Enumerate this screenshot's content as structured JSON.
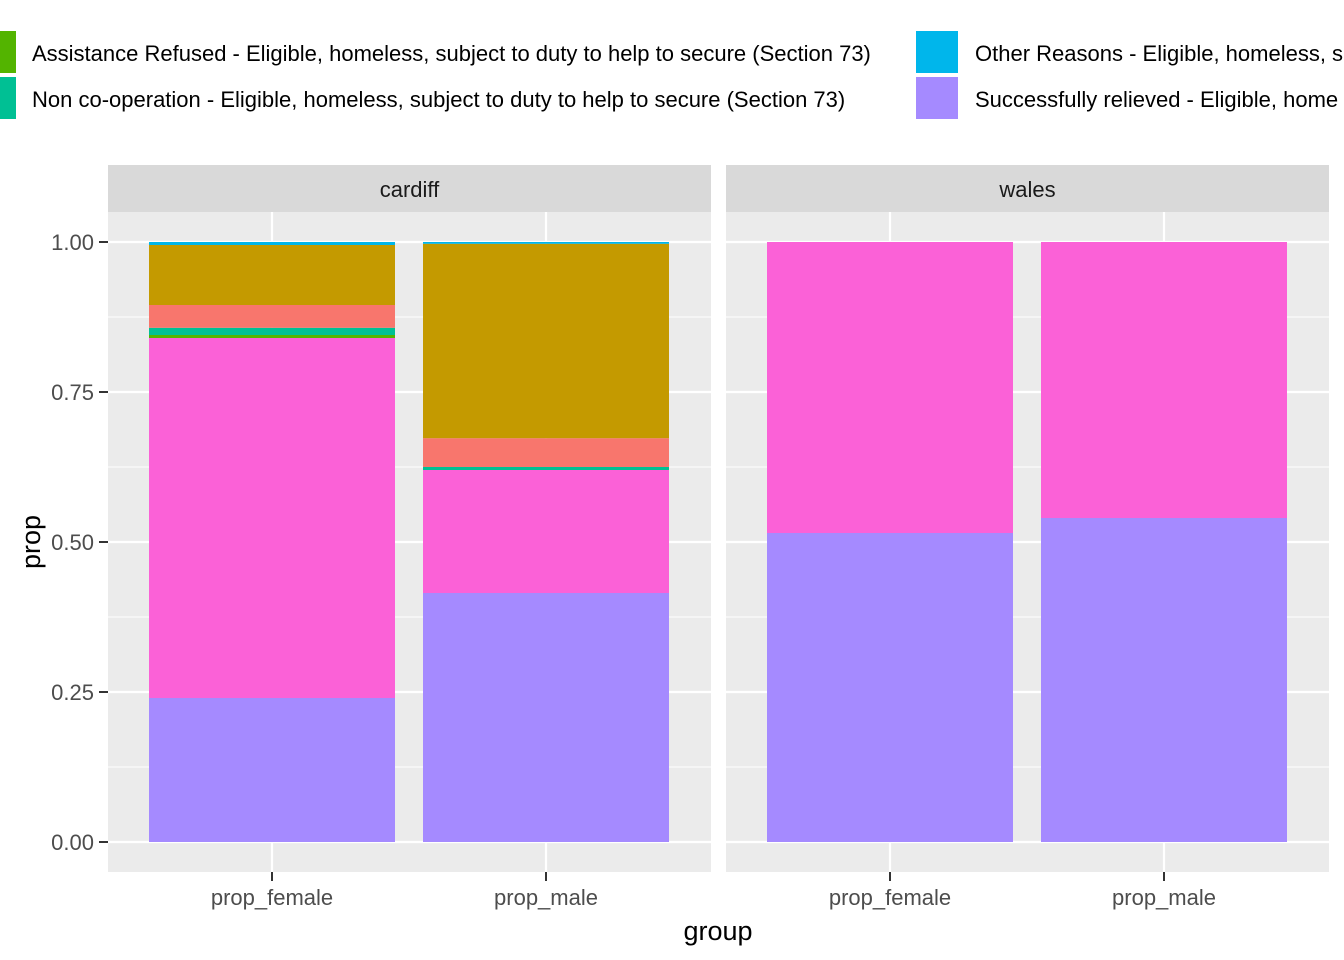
{
  "chart_data": {
    "type": "bar",
    "stacked": true,
    "facet_var": "area",
    "panels": [
      {
        "strip": "cardiff",
        "categories": [
          "prop_female",
          "prop_male"
        ]
      },
      {
        "strip": "wales",
        "categories": [
          "prop_female",
          "prop_male"
        ]
      }
    ],
    "xlabel": "group",
    "ylabel": "prop",
    "ylim": [
      0,
      1
    ],
    "yticks": [
      "0.00",
      "0.25",
      "0.50",
      "0.75",
      "1.00"
    ],
    "grid": true,
    "legend_position": "top",
    "legend": [
      {
        "label": "Assistance Refused - Eligible, homeless, subject to duty to help to secure (Section 73)",
        "color": "#53B400"
      },
      {
        "label": "Non co-operation - Eligible, homeless, subject to duty to help to secure (Section 73)",
        "color": "#00C094"
      },
      {
        "label": "Other Reasons - Eligible, homeless, s",
        "color": "#00B6EB"
      },
      {
        "label": "Successfully relieved - Eligible, home",
        "color": "#A58AFF"
      }
    ],
    "stacks": {
      "cardiff": {
        "prop_female": [
          {
            "color": "#A58AFF",
            "value": 0.24
          },
          {
            "color": "#FB61D7",
            "value": 0.6
          },
          {
            "color": "#53B400",
            "value": 0.005
          },
          {
            "color": "#00C094",
            "value": 0.012
          },
          {
            "color": "#F8766D",
            "value": 0.038
          },
          {
            "color": "#C49A00",
            "value": 0.1
          },
          {
            "color": "#00B6EB",
            "value": 0.005
          }
        ],
        "prop_male": [
          {
            "color": "#A58AFF",
            "value": 0.415
          },
          {
            "color": "#FB61D7",
            "value": 0.205
          },
          {
            "color": "#00C094",
            "value": 0.005
          },
          {
            "color": "#F8766D",
            "value": 0.048
          },
          {
            "color": "#C49A00",
            "value": 0.324
          },
          {
            "color": "#00B6EB",
            "value": 0.003
          }
        ]
      },
      "wales": {
        "prop_female": [
          {
            "color": "#A58AFF",
            "value": 0.515
          },
          {
            "color": "#FB61D7",
            "value": 0.485
          }
        ],
        "prop_male": [
          {
            "color": "#A58AFF",
            "value": 0.54
          },
          {
            "color": "#FB61D7",
            "value": 0.46
          }
        ]
      }
    }
  }
}
